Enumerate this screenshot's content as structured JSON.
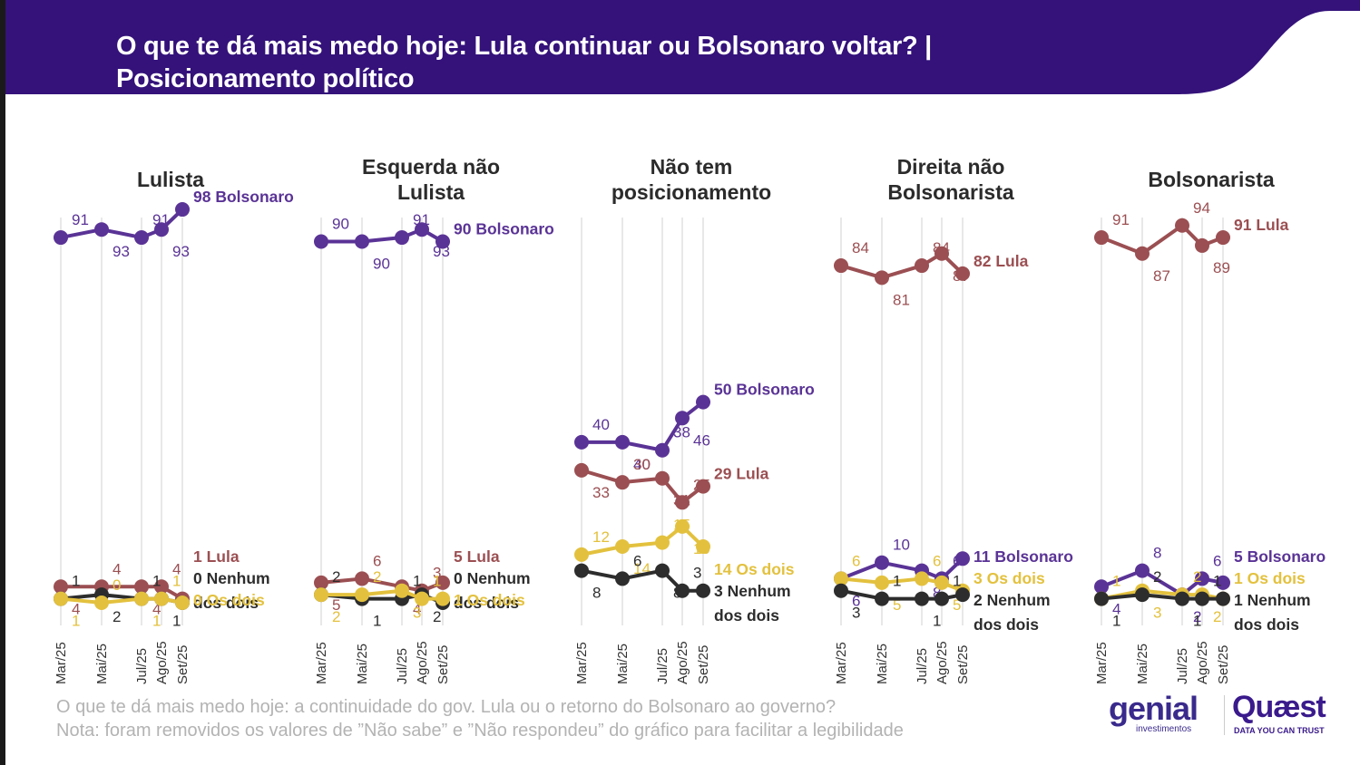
{
  "header": {
    "title_line1": "O que te dá mais medo hoje: Lula continuar ou Bolsonaro voltar? |",
    "title_line2": "Posicionamento político",
    "background_color": "#34127a"
  },
  "footer": {
    "question": "O que te dá mais medo hoje: a continuidade do gov. Lula ou o retorno do Bolsonaro ao governo?",
    "note": "Nota: foram removidos os valores de ”Não sabe” e ”Não respondeu” do gráfico para facilitar a legibilidade"
  },
  "logos": {
    "genial": "genial",
    "genial_sub": "investimentos",
    "quaest": "Quæst",
    "quaest_sub": "DATA YOU CAN TRUST"
  },
  "chart_data": {
    "type": "line",
    "title": "O que te dá mais medo hoje: Lula continuar ou Bolsonaro voltar? | Posicionamento político",
    "x": [
      "Mar/25",
      "Mai/25",
      "Jul/25",
      "Ago/25",
      "Set/25"
    ],
    "ylim": [
      0,
      100
    ],
    "grid": "vertical",
    "series_colors": {
      "Bolsonaro": "#5a3396",
      "Lula": "#9b4f52",
      "Os dois": "#e3c13e",
      "Nenhum dos dois": "#2d2d2d"
    },
    "panels": [
      {
        "title": "Lulista",
        "series": [
          {
            "name": "Bolsonaro",
            "end_label": "98 Bolsonaro",
            "values": [
              91,
              93,
              91,
              93,
              98
            ]
          },
          {
            "name": "Lula",
            "end_label": "1 Lula",
            "values": [
              4,
              4,
              4,
              4,
              1
            ]
          },
          {
            "name": "Nenhum dos dois",
            "end_label": "0 Nenhum dos dois",
            "values": [
              1,
              2,
              1,
              1,
              0
            ]
          },
          {
            "name": "Os dois",
            "end_label": "0 Os dois",
            "values": [
              1,
              0,
              1,
              1,
              0
            ]
          }
        ]
      },
      {
        "title": "Esquerda não Lulista",
        "series": [
          {
            "name": "Bolsonaro",
            "end_label": "90 Bolsonaro",
            "values": [
              90,
              90,
              91,
              93,
              90
            ]
          },
          {
            "name": "Lula",
            "end_label": "5 Lula",
            "values": [
              5,
              6,
              4,
              3,
              5
            ]
          },
          {
            "name": "Nenhum dos dois",
            "end_label": "0 Nenhum dos dois",
            "values": [
              2,
              1,
              1,
              2,
              0
            ]
          },
          {
            "name": "Os dois",
            "end_label": "1 Os dois",
            "values": [
              2,
              2,
              3,
              1,
              1
            ]
          }
        ]
      },
      {
        "title": "Não tem posicionamento",
        "series": [
          {
            "name": "Bolsonaro",
            "end_label": "50 Bolsonaro",
            "values": [
              40,
              40,
              38,
              46,
              50
            ]
          },
          {
            "name": "Lula",
            "end_label": "29 Lula",
            "values": [
              33,
              30,
              31,
              25,
              29
            ]
          },
          {
            "name": "Os dois",
            "end_label": "14 Os dois",
            "values": [
              12,
              14,
              15,
              19,
              14
            ]
          },
          {
            "name": "Nenhum dos dois",
            "end_label": "3 Nenhum dos dois",
            "values": [
              8,
              6,
              8,
              3,
              3
            ]
          }
        ]
      },
      {
        "title": "Direita não Bolsonarista",
        "series": [
          {
            "name": "Lula",
            "end_label": "82 Lula",
            "values": [
              84,
              81,
              84,
              87,
              82
            ]
          },
          {
            "name": "Bolsonaro",
            "end_label": "11 Bolsonaro",
            "values": [
              6,
              10,
              8,
              6,
              11
            ]
          },
          {
            "name": "Os dois",
            "end_label": "3 Os dois",
            "values": [
              6,
              5,
              6,
              5,
              3
            ]
          },
          {
            "name": "Nenhum dos dois",
            "end_label": "2 Nenhum dos dois",
            "values": [
              3,
              1,
              1,
              1,
              2
            ]
          }
        ]
      },
      {
        "title": "Bolsonarista",
        "series": [
          {
            "name": "Lula",
            "end_label": "91 Lula",
            "values": [
              91,
              87,
              94,
              89,
              91
            ]
          },
          {
            "name": "Bolsonaro",
            "end_label": "5 Bolsonaro",
            "values": [
              4,
              8,
              2,
              6,
              5
            ]
          },
          {
            "name": "Os dois",
            "end_label": "1 Os dois",
            "values": [
              1,
              3,
              2,
              2,
              1
            ]
          },
          {
            "name": "Nenhum dos dois",
            "end_label": "1 Nenhum dos dois",
            "values": [
              1,
              2,
              1,
              1,
              1
            ]
          }
        ]
      }
    ]
  }
}
